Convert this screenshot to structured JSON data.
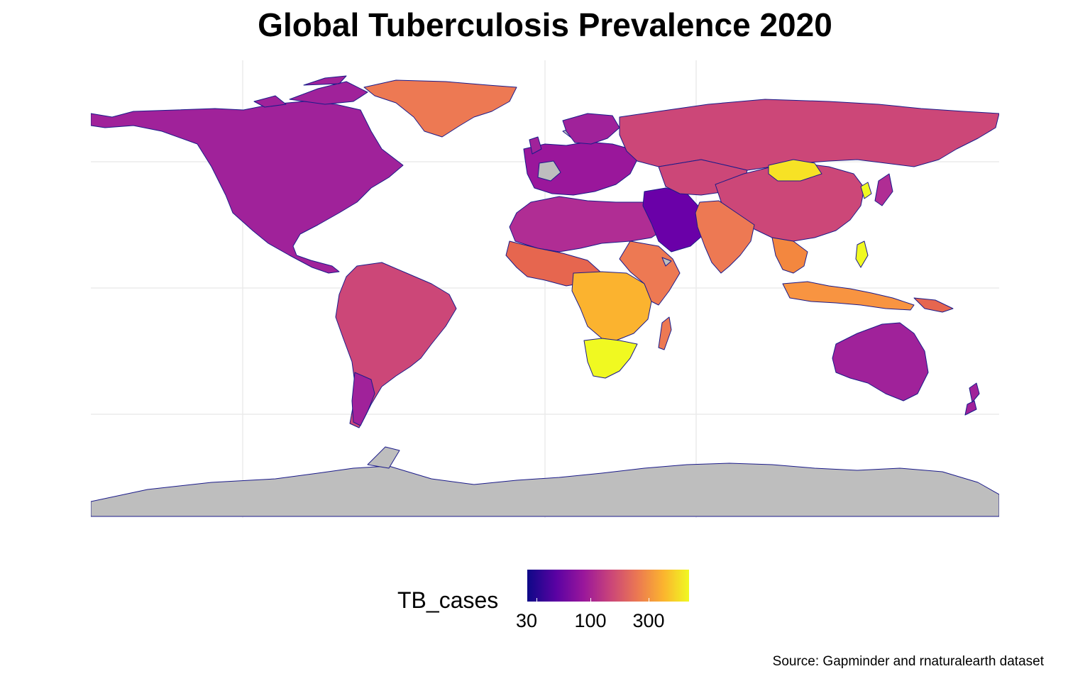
{
  "title": "Global Tuberculosis Prevalence 2020",
  "caption": "Source: Gapminder and rnaturalearth dataset",
  "legend": {
    "title": "TB_cases",
    "ticks": [
      "30",
      "100",
      "300"
    ],
    "palette": [
      "#0d0887",
      "#5b02a3",
      "#9a179b",
      "#cb4678",
      "#eb7852",
      "#fbb32f",
      "#f0f921"
    ],
    "na_color": "#bebebe",
    "border_color": "#0d0887"
  },
  "map": {
    "type": "choropleth",
    "projection": "equirectangular",
    "regions": [
      {
        "name": "greenland",
        "level": "high-mid"
      },
      {
        "name": "north-america",
        "level": "low"
      },
      {
        "name": "south-america",
        "level": "mid"
      },
      {
        "name": "africa",
        "level": "high"
      },
      {
        "name": "southern-africa",
        "level": "very-high"
      },
      {
        "name": "russia",
        "level": "mid"
      },
      {
        "name": "china",
        "level": "mid"
      },
      {
        "name": "india",
        "level": "high-mid"
      },
      {
        "name": "mongolia",
        "level": "very-high"
      },
      {
        "name": "australia",
        "level": "low"
      },
      {
        "name": "antarctica",
        "level": "no-data"
      }
    ]
  }
}
